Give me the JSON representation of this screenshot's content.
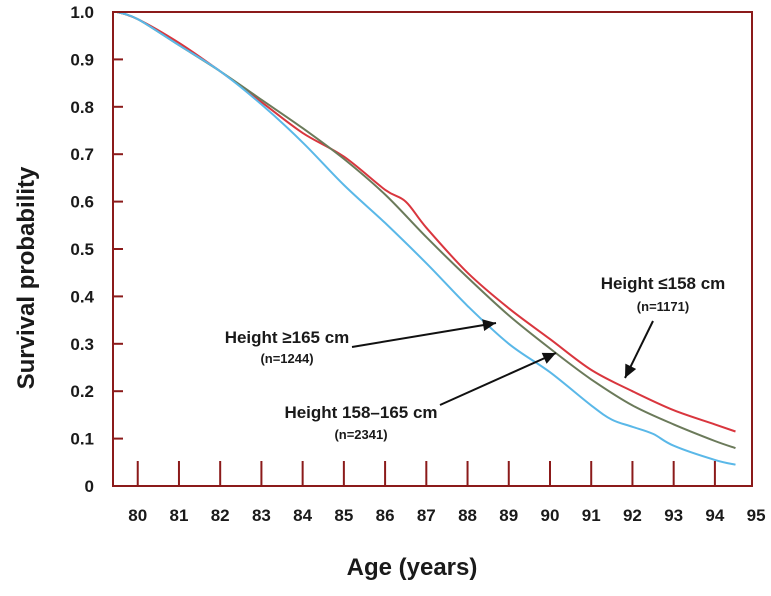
{
  "chart_data": {
    "type": "line",
    "xlabel": "Age (years)",
    "ylabel": "Survival probability",
    "xlim": [
      79.4,
      94.9
    ],
    "ylim": [
      0,
      1.0
    ],
    "xticks": [
      80,
      81,
      82,
      83,
      84,
      85,
      86,
      87,
      88,
      89,
      90,
      91,
      92,
      93,
      94,
      95
    ],
    "yticks": [
      0,
      0.1,
      0.2,
      0.3,
      0.4,
      0.5,
      0.6,
      0.7,
      0.8,
      0.9,
      1.0
    ],
    "ytick_labels": [
      "0",
      "0.1",
      "0.2",
      "0.3",
      "0.4",
      "0.5",
      "0.6",
      "0.7",
      "0.8",
      "0.9",
      "1.0"
    ],
    "grid": false,
    "legend": "none",
    "series": [
      {
        "name": "Height ≤158 cm",
        "n": "(n=1171)",
        "color": "#d9363e",
        "x": [
          79.5,
          80,
          81,
          82,
          83,
          84,
          85,
          86,
          86.5,
          87,
          88,
          89,
          90,
          91,
          92,
          93,
          94,
          94.5
        ],
        "y": [
          1.0,
          0.985,
          0.935,
          0.875,
          0.81,
          0.745,
          0.695,
          0.625,
          0.6,
          0.545,
          0.45,
          0.375,
          0.31,
          0.245,
          0.2,
          0.16,
          0.13,
          0.115
        ]
      },
      {
        "name": "Height 158–165 cm",
        "n": "(n=2341)",
        "color": "#6b7a5a",
        "x": [
          79.5,
          80,
          81,
          82,
          83,
          84,
          85,
          86,
          87,
          88,
          89,
          90,
          91,
          92,
          93,
          94,
          94.5
        ],
        "y": [
          1.0,
          0.985,
          0.93,
          0.875,
          0.815,
          0.755,
          0.69,
          0.615,
          0.525,
          0.44,
          0.36,
          0.29,
          0.225,
          0.17,
          0.13,
          0.095,
          0.08
        ]
      },
      {
        "name": "Height ≥165 cm",
        "n": "(n=1244)",
        "color": "#5ab8e8",
        "x": [
          79.5,
          80,
          81,
          82,
          83,
          84,
          85,
          86,
          87,
          88,
          89,
          90,
          91,
          91.5,
          92,
          92.5,
          93,
          94,
          94.5
        ],
        "y": [
          1.0,
          0.985,
          0.93,
          0.875,
          0.805,
          0.725,
          0.635,
          0.555,
          0.47,
          0.38,
          0.3,
          0.24,
          0.17,
          0.14,
          0.125,
          0.11,
          0.085,
          0.055,
          0.045
        ]
      }
    ],
    "annotations": [
      {
        "series": 0,
        "title": "Height ≤158 cm",
        "n": "(n=1171)"
      },
      {
        "series": 2,
        "title": "Height ≥165 cm",
        "n": "(n=1244)"
      },
      {
        "series": 1,
        "title": "Height 158–165 cm",
        "n": "(n=2341)"
      }
    ],
    "frame_color": "#8b1a1a"
  }
}
